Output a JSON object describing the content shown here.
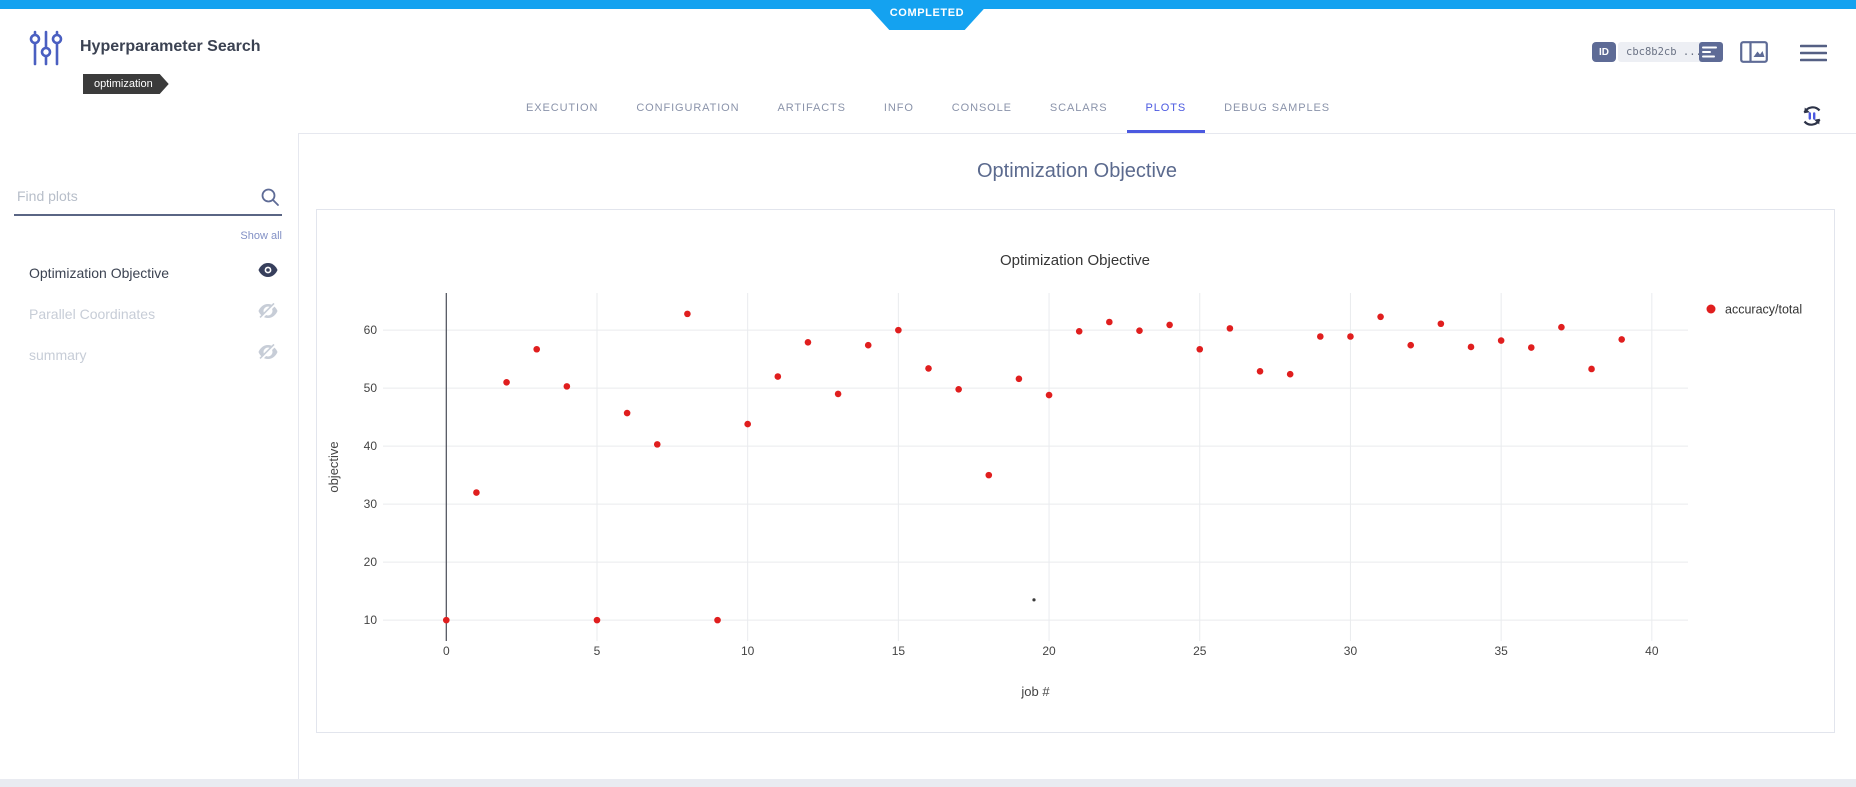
{
  "status": {
    "label": "COMPLETED"
  },
  "header": {
    "title": "Hyperparameter Search",
    "tag": "optimization",
    "id_badge": "ID",
    "id_value": "cbc8b2cb ..."
  },
  "tabs": {
    "items": [
      {
        "label": "EXECUTION",
        "active": false
      },
      {
        "label": "CONFIGURATION",
        "active": false
      },
      {
        "label": "ARTIFACTS",
        "active": false
      },
      {
        "label": "INFO",
        "active": false
      },
      {
        "label": "CONSOLE",
        "active": false
      },
      {
        "label": "SCALARS",
        "active": false
      },
      {
        "label": "PLOTS",
        "active": true
      },
      {
        "label": "DEBUG SAMPLES",
        "active": false
      }
    ]
  },
  "sidebar": {
    "search_placeholder": "Find plots",
    "show_all_label": "Show all",
    "items": [
      {
        "label": "Optimization Objective",
        "visible": true
      },
      {
        "label": "Parallel Coordinates",
        "visible": false
      },
      {
        "label": "summary",
        "visible": false
      }
    ]
  },
  "main": {
    "section_title": "Optimization Objective"
  },
  "chart_data": {
    "type": "scatter",
    "title": "Optimization Objective",
    "xlabel": "job #",
    "ylabel": "objective",
    "legend_position": "right",
    "grid": true,
    "zero_line_x": 0,
    "x_ticks": [
      0,
      5,
      10,
      15,
      20,
      25,
      30,
      35,
      40
    ],
    "y_ticks": [
      10,
      20,
      30,
      40,
      50,
      60
    ],
    "xlim": [
      -2.1,
      41.2
    ],
    "ylim": [
      6.4,
      66.4
    ],
    "x": [
      0,
      1,
      2,
      3,
      4,
      5,
      6,
      7,
      8,
      9,
      10,
      11,
      12,
      13,
      14,
      15,
      16,
      17,
      18,
      19,
      20,
      21,
      22,
      23,
      24,
      25,
      26,
      27,
      28,
      29,
      30,
      31,
      32,
      33,
      34,
      35,
      36,
      37,
      38,
      39
    ],
    "series": [
      {
        "name": "accuracy/total",
        "color": "#e01e1e",
        "values": [
          10,
          32,
          51,
          56.7,
          50.3,
          10,
          45.7,
          40.3,
          62.8,
          10,
          43.8,
          52,
          57.9,
          49,
          57.4,
          60,
          53.4,
          49.8,
          35,
          51.6,
          48.8,
          59.8,
          61.4,
          59.9,
          60.9,
          56.7,
          60.3,
          52.9,
          52.4,
          58.9,
          58.9,
          62.3,
          57.4,
          61.1,
          57.1,
          58.2,
          57,
          60.5,
          53.3,
          58.4
        ]
      }
    ],
    "extra_point": {
      "x": 19.5,
      "y": 13.5,
      "color": "#3a3a3a"
    }
  },
  "colors": {
    "accent_blue": "#14a2f0",
    "active_tab": "#4b59e0",
    "dot_red": "#e01e1e",
    "slate_icon": "#5e6b96",
    "grid_line": "#e9ebee"
  }
}
